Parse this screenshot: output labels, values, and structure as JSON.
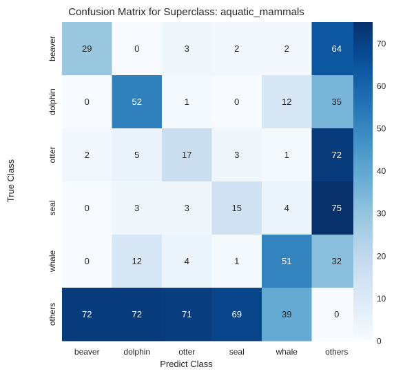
{
  "chart_data": {
    "type": "heatmap",
    "title": "Confusion Matrix for Superclass: aquatic_mammals",
    "xlabel": "Predict Class",
    "ylabel": "True Class",
    "x_categories": [
      "beaver",
      "dolphin",
      "otter",
      "seal",
      "whale",
      "others"
    ],
    "y_categories": [
      "beaver",
      "dolphin",
      "otter",
      "seal",
      "whale",
      "others"
    ],
    "values": [
      [
        29,
        0,
        3,
        2,
        2,
        64
      ],
      [
        0,
        52,
        1,
        0,
        12,
        35
      ],
      [
        2,
        5,
        17,
        3,
        1,
        72
      ],
      [
        0,
        3,
        3,
        15,
        4,
        75
      ],
      [
        0,
        12,
        4,
        1,
        51,
        32
      ],
      [
        72,
        72,
        71,
        69,
        39,
        0
      ]
    ],
    "colorbar": {
      "colormap": "Blues",
      "range": [
        0,
        75
      ],
      "ticks": [
        0,
        10,
        20,
        30,
        40,
        50,
        60,
        70
      ]
    },
    "grid": false
  }
}
